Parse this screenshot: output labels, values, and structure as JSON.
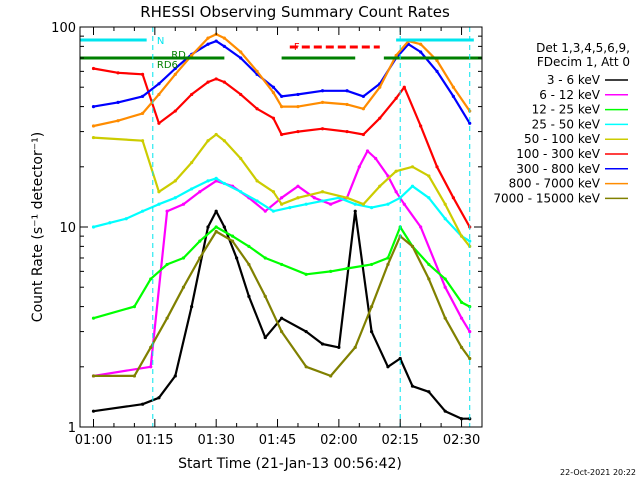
{
  "chart_data": {
    "type": "line",
    "title": "RHESSI Observing Summary Count Rates",
    "xlabel": "Start Time (21-Jan-13 00:56:42)",
    "ylabel": "Count Rate (s⁻¹ detector⁻¹)",
    "x_ticks": [
      "01:00",
      "01:15",
      "01:30",
      "01:45",
      "02:00",
      "02:15",
      "02:30"
    ],
    "x_tick_minutes": [
      60,
      75,
      90,
      105,
      120,
      135,
      150
    ],
    "xlim_minutes": [
      56.7,
      155
    ],
    "y_scale": "log",
    "ylim": [
      1,
      100
    ],
    "y_tick_labels": [
      "1",
      "10",
      "100"
    ],
    "grid": false,
    "legend_position": "right",
    "legend_header": [
      "Det 1,3,4,5,6,9,",
      "FDecim 1, Att 0"
    ],
    "timestamp": "22-Oct-2021 20:22",
    "flags": [
      {
        "label": "N",
        "color": "#00e5ee"
      },
      {
        "label": "RD",
        "color": "#008000"
      },
      {
        "label": "RD6",
        "color": "#008000"
      },
      {
        "label": "F",
        "color": "#ff0000"
      }
    ],
    "series": [
      {
        "name": "3 - 6 keV",
        "color": "#000000",
        "x": [
          60,
          72,
          76,
          80,
          84,
          88,
          90,
          92,
          95,
          98,
          102,
          106,
          112,
          116,
          120,
          124,
          128,
          132,
          135,
          138,
          142,
          146,
          150,
          152
        ],
        "y": [
          1.2,
          1.3,
          1.4,
          1.8,
          4.0,
          10,
          12,
          10,
          7,
          4.5,
          2.8,
          3.5,
          3.0,
          2.6,
          2.5,
          12,
          3.0,
          2.0,
          2.2,
          1.6,
          1.5,
          1.2,
          1.1,
          1.1
        ]
      },
      {
        "name": "6 - 12 keV",
        "color": "#ff00ff",
        "x": [
          60,
          74,
          78,
          82,
          86,
          90,
          94,
          98,
          102,
          106,
          110,
          114,
          118,
          122,
          125,
          127,
          129,
          132,
          134,
          136,
          140,
          146,
          150,
          152
        ],
        "y": [
          1.8,
          2.0,
          12,
          13,
          15,
          17,
          16,
          14,
          12,
          14,
          16,
          14,
          13,
          14,
          20,
          24,
          22,
          18,
          15,
          13,
          10,
          5,
          3.5,
          3.0
        ]
      },
      {
        "name": "12 - 25 keV",
        "color": "#00ff00",
        "x": [
          60,
          70,
          74,
          78,
          82,
          86,
          90,
          94,
          98,
          102,
          106,
          112,
          118,
          122,
          128,
          132,
          135,
          138,
          142,
          146,
          150,
          152
        ],
        "y": [
          3.5,
          4.0,
          5.5,
          6.5,
          7.0,
          8.5,
          10,
          9.0,
          8.0,
          7.0,
          6.5,
          5.8,
          6.0,
          6.2,
          6.5,
          7.0,
          10,
          8.0,
          6.5,
          5.5,
          4.2,
          4.0
        ]
      },
      {
        "name": "25 - 50 keV",
        "color": "#00ffff",
        "x": [
          60,
          64,
          68,
          72,
          76,
          80,
          84,
          88,
          90,
          92,
          96,
          100,
          104,
          108,
          112,
          116,
          120,
          124,
          128,
          132,
          135,
          138,
          142,
          146,
          150,
          152
        ],
        "y": [
          10,
          10.5,
          11,
          12,
          13,
          14,
          15.5,
          17,
          17.5,
          16.5,
          15,
          13.5,
          12,
          12.5,
          13,
          13.5,
          14,
          13,
          12.5,
          13,
          14,
          16,
          14,
          11,
          9,
          8.5
        ]
      },
      {
        "name": "50 - 100 keV",
        "color": "#cccc00",
        "x": [
          60,
          72,
          76,
          80,
          84,
          88,
          90,
          92,
          96,
          100,
          104,
          106,
          110,
          116,
          122,
          126,
          130,
          134,
          138,
          142,
          146,
          150,
          152
        ],
        "y": [
          28,
          27,
          15,
          17,
          21,
          27,
          29,
          27,
          22,
          17,
          15,
          13,
          14,
          15,
          14,
          13,
          16,
          19,
          20,
          18,
          13,
          9,
          8
        ]
      },
      {
        "name": "100 - 300 keV",
        "color": "#ff0000",
        "x": [
          60,
          66,
          72,
          76,
          80,
          84,
          88,
          90,
          92,
          96,
          100,
          104,
          106,
          110,
          116,
          122,
          126,
          130,
          134,
          136,
          140,
          144,
          148,
          152
        ],
        "y": [
          62,
          59,
          58,
          33,
          38,
          46,
          53,
          55,
          53,
          46,
          39,
          35,
          29,
          30,
          31,
          30,
          29,
          35,
          44,
          50,
          32,
          20,
          14,
          10
        ]
      },
      {
        "name": "300 - 800 keV",
        "color": "#0000ff",
        "x": [
          60,
          66,
          72,
          76,
          80,
          84,
          88,
          90,
          92,
          96,
          100,
          104,
          106,
          110,
          116,
          122,
          126,
          130,
          134,
          137,
          140,
          144,
          148,
          152
        ],
        "y": [
          40,
          42,
          45,
          52,
          62,
          73,
          82,
          85,
          80,
          70,
          58,
          50,
          45,
          46,
          48,
          48,
          45,
          52,
          70,
          82,
          75,
          60,
          45,
          33
        ]
      },
      {
        "name": "800 - 7000 keV",
        "color": "#ff8c00",
        "x": [
          60,
          66,
          72,
          76,
          80,
          84,
          88,
          90,
          92,
          96,
          100,
          104,
          106,
          110,
          116,
          122,
          126,
          130,
          134,
          137,
          140,
          144,
          148,
          152
        ],
        "y": [
          32,
          34,
          37,
          46,
          58,
          72,
          88,
          92,
          88,
          75,
          60,
          47,
          40,
          40,
          42,
          41,
          39,
          50,
          72,
          85,
          82,
          68,
          50,
          38
        ]
      },
      {
        "name": "7000 - 15000 keV",
        "color": "#808000",
        "x": [
          60,
          70,
          74,
          78,
          82,
          86,
          90,
          94,
          98,
          102,
          106,
          112,
          118,
          124,
          128,
          132,
          135,
          138,
          142,
          146,
          150,
          152
        ],
        "y": [
          1.8,
          1.8,
          2.5,
          3.5,
          5.0,
          7.0,
          9.5,
          8.5,
          6.5,
          4.5,
          3.0,
          2.0,
          1.8,
          2.5,
          4.0,
          6.5,
          9.0,
          8.0,
          5.5,
          3.5,
          2.5,
          2.2
        ]
      }
    ]
  }
}
